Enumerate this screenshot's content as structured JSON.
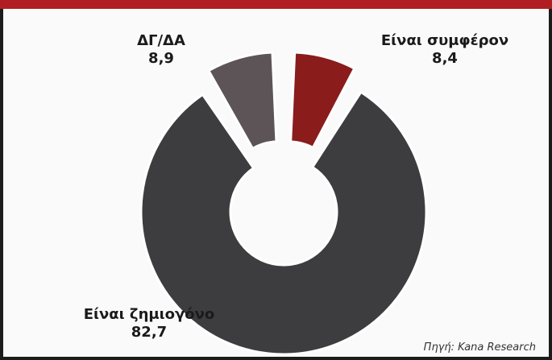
{
  "chart_data": {
    "type": "pie",
    "donut": true,
    "slices": [
      {
        "label": "Είναι συμφέρον",
        "value": 8.4,
        "value_label": "8,4",
        "color": "#8b1c1c",
        "exploded": true
      },
      {
        "label": "Είναι ζημιογόνο",
        "value": 82.7,
        "value_label": "82,7",
        "color": "#3d3d3f",
        "exploded": false
      },
      {
        "label": "ΔΓ/ΔΑ",
        "value": 8.9,
        "value_label": "8,9",
        "color": "#5c5457",
        "exploded": true
      }
    ],
    "source": "Πηγή: Kana Research",
    "colors": {
      "accent_bar": "#b01e22",
      "border": "#1c1c1c"
    }
  }
}
